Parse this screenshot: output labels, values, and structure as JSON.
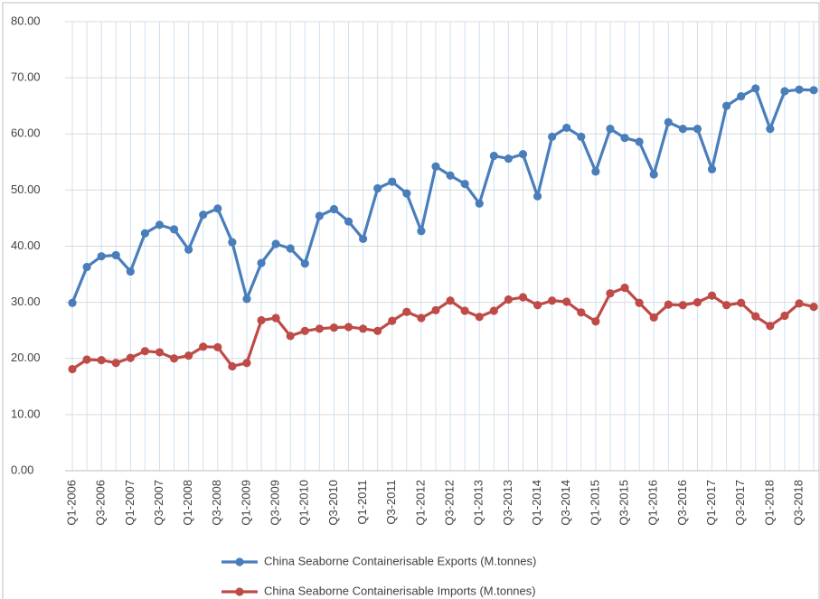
{
  "chart_data": {
    "type": "line",
    "categories": [
      "Q1-2006",
      null,
      "Q3-2006",
      null,
      "Q1-2007",
      null,
      "Q3-2007",
      null,
      "Q1-2008",
      null,
      "Q3-2008",
      null,
      "Q1-2009",
      null,
      "Q3-2009",
      null,
      "Q1-2010",
      null,
      "Q3-2010",
      null,
      "Q1-2011",
      null,
      "Q3-2011",
      null,
      "Q1-2012",
      null,
      "Q3-2012",
      null,
      "Q1-2013",
      null,
      "Q3-2013",
      null,
      "Q1-2014",
      null,
      "Q3-2014",
      null,
      "Q1-2015",
      null,
      "Q3-2015",
      null,
      "Q1-2016",
      null,
      "Q3-2016",
      null,
      "Q1-2017",
      null,
      "Q3-2017",
      null,
      "Q1-2018",
      null,
      "Q3-2018",
      null
    ],
    "series": [
      {
        "name": "China Seaborne Containerisable Exports (M.tonnes)",
        "color": "#4a7ebb",
        "values": [
          29.9,
          36.3,
          38.2,
          38.4,
          35.5,
          42.3,
          43.8,
          43.0,
          39.4,
          45.6,
          46.7,
          40.7,
          30.6,
          37.0,
          40.4,
          39.6,
          36.9,
          45.4,
          46.6,
          44.4,
          41.3,
          50.3,
          51.5,
          49.4,
          42.7,
          54.2,
          52.6,
          51.1,
          47.6,
          56.1,
          55.6,
          56.4,
          48.9,
          59.5,
          61.1,
          59.5,
          53.3,
          60.9,
          59.3,
          58.6,
          52.8,
          62.1,
          60.9,
          60.9,
          53.7,
          65.0,
          66.7,
          68.1,
          60.9,
          67.6,
          67.9,
          67.8
        ]
      },
      {
        "name": "China Seaborne Containerisable Imports (M.tonnes)",
        "color": "#be4b48",
        "values": [
          18.1,
          19.8,
          19.7,
          19.2,
          20.1,
          21.3,
          21.1,
          20.0,
          20.5,
          22.1,
          22.0,
          18.6,
          19.2,
          26.8,
          27.2,
          24.0,
          24.9,
          25.3,
          25.5,
          25.6,
          25.3,
          24.9,
          26.7,
          28.3,
          27.2,
          28.6,
          30.3,
          28.5,
          27.4,
          28.5,
          30.5,
          30.9,
          29.5,
          30.3,
          30.1,
          28.2,
          26.6,
          31.6,
          32.6,
          29.9,
          27.3,
          29.6,
          29.5,
          30.0,
          31.2,
          29.5,
          29.9,
          27.5,
          25.8,
          27.6,
          29.8,
          29.2
        ]
      }
    ],
    "ylim": [
      0,
      80
    ],
    "yticks": [
      {
        "value": 0,
        "label": "0.00"
      },
      {
        "value": 10,
        "label": "10.00"
      },
      {
        "value": 20,
        "label": "20.00"
      },
      {
        "value": 30,
        "label": "30.00"
      },
      {
        "value": 40,
        "label": "40.00"
      },
      {
        "value": 50,
        "label": "50.00"
      },
      {
        "value": 60,
        "label": "60.00"
      },
      {
        "value": 70,
        "label": "70.00"
      },
      {
        "value": 80,
        "label": "80.00"
      }
    ],
    "grid": true,
    "legend": "bottom"
  }
}
